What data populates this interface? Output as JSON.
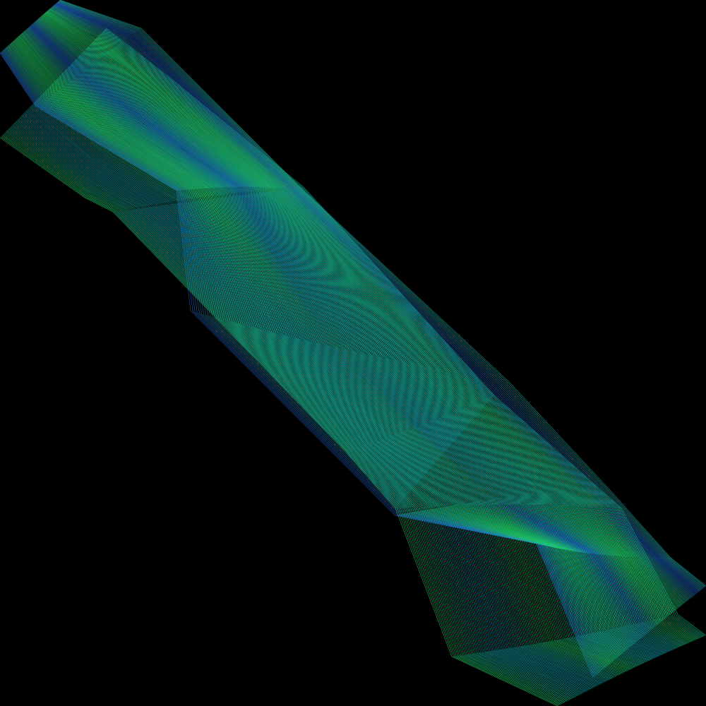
{
  "artwork": {
    "background_color": "#000000",
    "colors": {
      "green": "#22d468",
      "teal": "#16a8b4",
      "blue": "#1f5fd0"
    }
  }
}
